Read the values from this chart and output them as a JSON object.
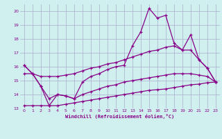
{
  "xlabel": "Windchill (Refroidissement éolien,°C)",
  "background_color": "#cff0ee",
  "grid_color": "#aaaacc",
  "line_color": "#880088",
  "xlim": [
    -0.5,
    23.5
  ],
  "ylim": [
    13.0,
    20.5
  ],
  "xticks": [
    0,
    1,
    2,
    3,
    4,
    5,
    6,
    7,
    8,
    9,
    10,
    11,
    12,
    13,
    14,
    15,
    16,
    17,
    18,
    19,
    20,
    21,
    22,
    23
  ],
  "yticks": [
    13,
    14,
    15,
    16,
    17,
    18,
    19,
    20
  ],
  "line1_x": [
    0,
    1,
    2,
    3,
    4,
    5,
    6,
    7,
    8,
    9,
    10,
    11,
    12,
    13,
    14,
    15,
    16,
    17,
    18,
    19,
    20,
    21,
    22,
    23
  ],
  "line1_y": [
    16.1,
    15.5,
    14.6,
    13.2,
    14.0,
    13.9,
    13.7,
    14.9,
    15.3,
    15.5,
    15.8,
    16.0,
    16.1,
    17.5,
    18.5,
    20.2,
    19.5,
    19.7,
    17.7,
    17.2,
    18.3,
    16.5,
    15.9,
    14.9
  ],
  "line2_x": [
    0,
    1,
    2,
    3,
    4,
    5,
    6,
    7,
    8,
    9,
    10,
    11,
    12,
    13,
    14,
    15,
    16,
    17,
    18,
    19,
    20,
    21,
    22,
    23
  ],
  "line2_y": [
    16.1,
    15.5,
    15.3,
    15.3,
    15.3,
    15.4,
    15.5,
    15.7,
    15.9,
    16.0,
    16.2,
    16.3,
    16.5,
    16.7,
    16.9,
    17.1,
    17.2,
    17.4,
    17.5,
    17.2,
    17.2,
    16.5,
    15.9,
    14.9
  ],
  "line3_x": [
    0,
    1,
    2,
    3,
    4,
    5,
    6,
    7,
    8,
    9,
    10,
    11,
    12,
    13,
    14,
    15,
    16,
    17,
    18,
    19,
    20,
    21,
    22,
    23
  ],
  "line3_y": [
    15.5,
    15.5,
    14.6,
    13.7,
    14.0,
    13.9,
    13.7,
    14.0,
    14.2,
    14.4,
    14.6,
    14.7,
    14.9,
    15.0,
    15.1,
    15.2,
    15.3,
    15.4,
    15.5,
    15.5,
    15.5,
    15.4,
    15.3,
    14.9
  ],
  "line4_x": [
    0,
    1,
    2,
    3,
    4,
    5,
    6,
    7,
    8,
    9,
    10,
    11,
    12,
    13,
    14,
    15,
    16,
    17,
    18,
    19,
    20,
    21,
    22,
    23
  ],
  "line4_y": [
    13.2,
    13.2,
    13.2,
    13.2,
    13.2,
    13.3,
    13.4,
    13.5,
    13.6,
    13.7,
    13.8,
    13.9,
    14.0,
    14.1,
    14.2,
    14.3,
    14.35,
    14.4,
    14.5,
    14.6,
    14.7,
    14.75,
    14.85,
    14.9
  ]
}
